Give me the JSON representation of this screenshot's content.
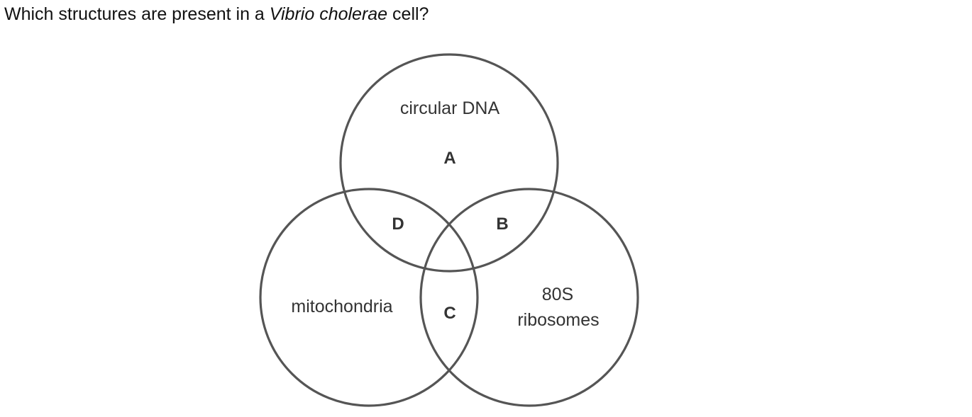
{
  "question": {
    "before": "Which structures are present in a ",
    "italic": "Vibrio cholerae",
    "after": " cell?"
  },
  "venn": {
    "sets": {
      "top": "circular DNA",
      "left": "mitochondria",
      "right_line1": "80S",
      "right_line2": "ribosomes"
    },
    "regions": {
      "a": "A",
      "b": "B",
      "c": "C",
      "d": "D"
    }
  }
}
